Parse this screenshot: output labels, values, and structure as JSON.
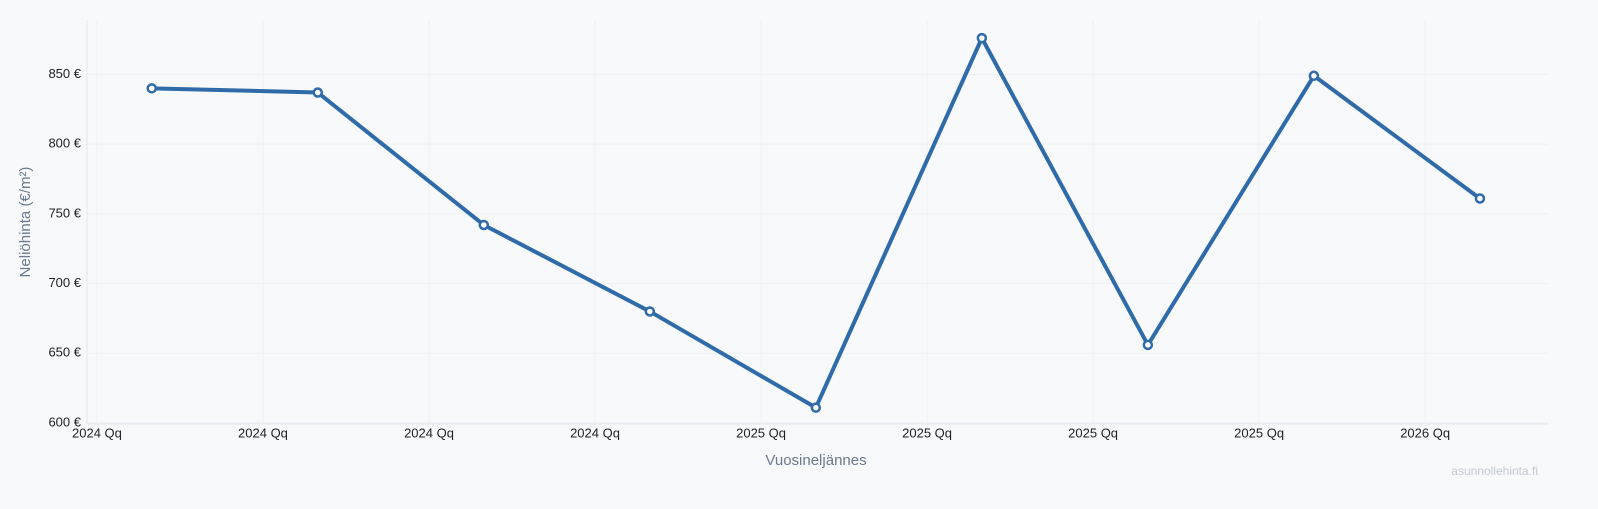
{
  "chart_data": {
    "type": "line",
    "x_label": "Vuosineljännes",
    "y_label": "Neliöhinta (€/m²)",
    "watermark": "asunnollehinta.fi",
    "x": [
      0.33,
      1.33,
      2.33,
      3.33,
      4.33,
      5.33,
      6.33,
      7.33,
      8.33
    ],
    "series": [
      {
        "color": "#2f6ba8",
        "values": [
          840,
          837,
          742,
          680,
          611,
          876,
          656,
          849,
          761
        ]
      }
    ],
    "xlim": [
      -0.06,
      8.74
    ],
    "xticks": [
      {
        "value": 0,
        "label": "2024 Qq"
      },
      {
        "value": 1,
        "label": "2024 Qq"
      },
      {
        "value": 2,
        "label": "2024 Qq"
      },
      {
        "value": 3,
        "label": "2024 Qq"
      },
      {
        "value": 4,
        "label": "2025 Qq"
      },
      {
        "value": 5,
        "label": "2025 Qq"
      },
      {
        "value": 6,
        "label": "2025 Qq"
      },
      {
        "value": 7,
        "label": "2025 Qq"
      },
      {
        "value": 8,
        "label": "2026 Qq"
      }
    ],
    "ylim": [
      600,
      889
    ],
    "yticks": [
      {
        "value": 600,
        "label": "600 €"
      },
      {
        "value": 650,
        "label": "650 €"
      },
      {
        "value": 700,
        "label": "700 €"
      },
      {
        "value": 750,
        "label": "750 €"
      },
      {
        "value": 800,
        "label": "800 €"
      },
      {
        "value": 850,
        "label": "850 €"
      }
    ],
    "grid": true
  }
}
